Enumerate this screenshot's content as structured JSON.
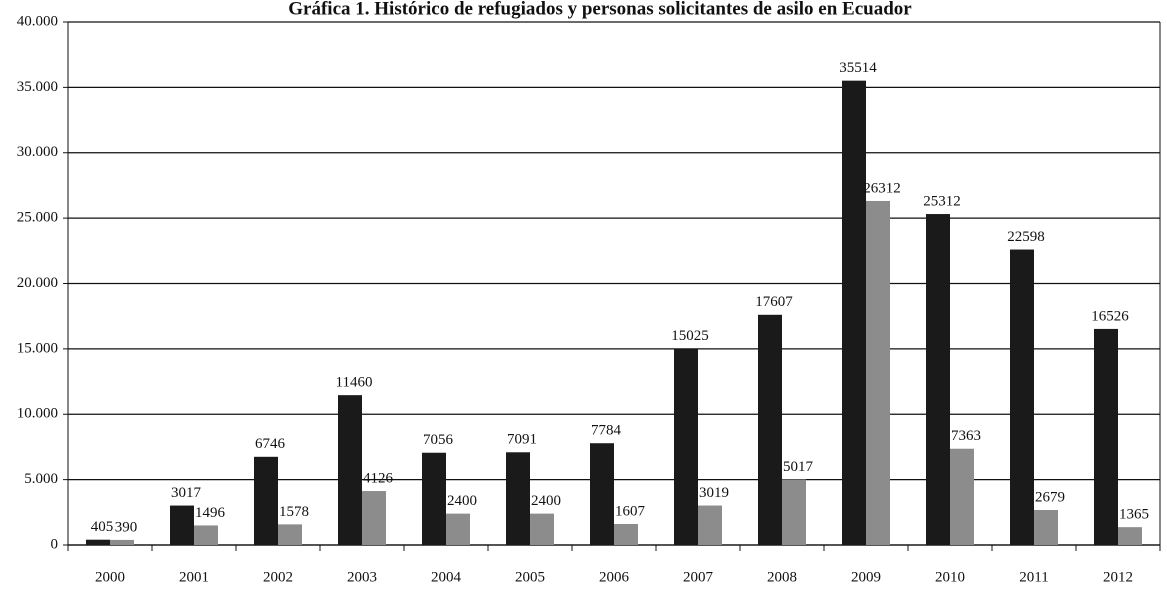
{
  "chart_data": {
    "type": "bar",
    "title": "Gráfica 1. Histórico de refugiados y personas solicitantes de asilo en Ecuador",
    "categories": [
      "2000",
      "2001",
      "2002",
      "2003",
      "2004",
      "2005",
      "2006",
      "2007",
      "2008",
      "2009",
      "2010",
      "2011",
      "2012"
    ],
    "series": [
      {
        "color": "#1a1a1a",
        "values": [
          405,
          3017,
          6746,
          11460,
          7056,
          7091,
          7784,
          15025,
          17607,
          35514,
          25312,
          22598,
          16526
        ]
      },
      {
        "color": "#8c8c8c",
        "values": [
          390,
          1496,
          1578,
          4126,
          2400,
          2400,
          1607,
          3019,
          5017,
          26312,
          7363,
          2679,
          1365
        ]
      }
    ],
    "ylim": [
      0,
      40000
    ],
    "yticks": [
      0,
      {
        "value": 5000,
        "label": "5.000"
      },
      {
        "value": 10000,
        "label": "10.000"
      },
      {
        "value": 15000,
        "label": "15.000"
      },
      {
        "value": 20000,
        "label": "20.000"
      },
      {
        "value": 25000,
        "label": "25.000"
      },
      {
        "value": 30000,
        "label": "30.000"
      },
      {
        "value": 35000,
        "label": "35.000"
      },
      {
        "value": 40000,
        "label": "40.000"
      }
    ],
    "grid": true
  }
}
